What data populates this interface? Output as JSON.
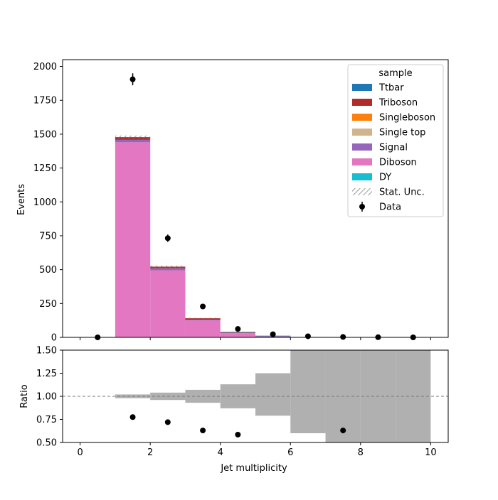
{
  "chart_data": [
    {
      "type": "bar",
      "subtype": "stacked-histogram",
      "ylabel": "Events",
      "ylim": [
        0,
        2050
      ],
      "xlim": [
        -0.5,
        10.5
      ],
      "y_ticks": [
        0,
        250,
        500,
        750,
        1000,
        1250,
        1500,
        1750,
        2000
      ],
      "bin_edges": [
        0,
        1,
        2,
        3,
        4,
        5,
        6,
        7,
        8,
        9,
        10
      ],
      "legend": {
        "title": "sample",
        "placement": "top-right",
        "entries": [
          {
            "label": "Ttbar",
            "kind": "patch",
            "color": "#1f77b4"
          },
          {
            "label": "Triboson",
            "kind": "patch",
            "color": "#b22b2b"
          },
          {
            "label": "Singleboson",
            "kind": "patch",
            "color": "#ff7f0e"
          },
          {
            "label": "Single top",
            "kind": "patch",
            "color": "#d2b48c"
          },
          {
            "label": "Signal",
            "kind": "patch",
            "color": "#9467bd"
          },
          {
            "label": "Diboson",
            "kind": "patch",
            "color": "#e377c2"
          },
          {
            "label": "DY",
            "kind": "patch",
            "color": "#17becf"
          },
          {
            "label": "Stat. Unc.",
            "kind": "hatch",
            "color": "#888888"
          },
          {
            "label": "Data",
            "kind": "errorbar",
            "color": "#000000"
          }
        ]
      },
      "stack_order": [
        "Diboson",
        "Signal",
        "Triboson",
        "DY",
        "Ttbar"
      ],
      "series": [
        {
          "name": "Diboson",
          "color": "#e377c2",
          "values": [
            0,
            1440,
            495,
            125,
            30,
            8,
            3,
            1,
            0,
            0
          ]
        },
        {
          "name": "Signal",
          "color": "#9467bd",
          "values": [
            0,
            18,
            15,
            6,
            3,
            1,
            0,
            0,
            0,
            0
          ]
        },
        {
          "name": "Triboson",
          "color": "#b22b2b",
          "values": [
            0,
            20,
            12,
            10,
            4,
            1,
            0,
            0,
            0,
            0
          ]
        },
        {
          "name": "DY",
          "color": "#17becf",
          "values": [
            0,
            0,
            0,
            0,
            2,
            1,
            0,
            0,
            0,
            0
          ]
        },
        {
          "name": "Ttbar",
          "color": "#1f77b4",
          "values": [
            0,
            0,
            0,
            0,
            2,
            1,
            0,
            0,
            0,
            0
          ]
        }
      ],
      "data_points": {
        "name": "Data",
        "x": [
          0.5,
          1.5,
          2.5,
          3.5,
          4.5,
          5.5,
          6.5,
          7.5,
          8.5,
          9.5
        ],
        "y": [
          0,
          1905,
          732,
          228,
          62,
          23,
          8,
          3,
          1,
          0
        ],
        "yerr": [
          0,
          44,
          27,
          15,
          8,
          5,
          3,
          2,
          1,
          0
        ]
      },
      "stat_unc": {
        "bins": [
          1,
          2,
          3
        ],
        "tops": [
          1478,
          522,
          141
        ],
        "half_width": [
          12,
          8,
          4
        ]
      }
    },
    {
      "type": "scatter",
      "subtype": "ratio",
      "xlabel": "Jet multiplicity",
      "ylabel": "Ratio",
      "ylim": [
        0.5,
        1.5
      ],
      "xlim": [
        -0.5,
        10.5
      ],
      "x_ticks": [
        0,
        2,
        4,
        6,
        8,
        10
      ],
      "y_ticks": [
        "0.50",
        "0.75",
        "1.00",
        "1.25",
        "1.50"
      ],
      "reference_line": 1.0,
      "unc_band": {
        "bin_edges": [
          1,
          2,
          3,
          4,
          5,
          6,
          7,
          8,
          9,
          10
        ],
        "low": [
          0.98,
          0.96,
          0.93,
          0.87,
          0.79,
          0.6,
          0.5,
          0.5,
          0.5
        ],
        "high": [
          1.02,
          1.04,
          1.07,
          1.13,
          1.25,
          1.5,
          1.5,
          1.5,
          1.5
        ],
        "color": "#b0b0b0"
      },
      "points": {
        "x": [
          1.5,
          2.5,
          3.5,
          4.5,
          7.5
        ],
        "y": [
          0.775,
          0.72,
          0.63,
          0.585,
          0.63
        ]
      }
    }
  ]
}
